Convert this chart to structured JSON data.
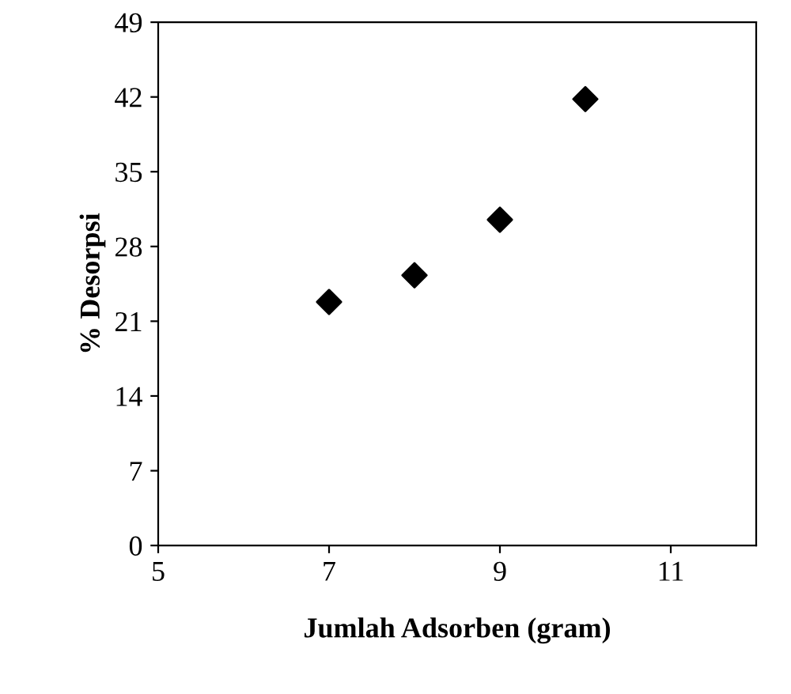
{
  "chart_data": {
    "type": "scatter",
    "xlabel": "Jumlah Adsorben (gram)",
    "ylabel": "% Desorpsi",
    "series": [
      {
        "color": "#000000",
        "x": [
          7,
          8,
          9,
          10
        ],
        "values": [
          22.8,
          25.3,
          30.5,
          41.8
        ]
      }
    ],
    "xlim": [
      5,
      12
    ],
    "xticks": [
      5,
      7,
      9,
      11
    ],
    "ylim": [
      0,
      49
    ],
    "yticks": [
      0,
      7,
      14,
      21,
      28,
      35,
      42,
      49
    ],
    "marker": "diamond",
    "grid": false,
    "legend": false
  }
}
